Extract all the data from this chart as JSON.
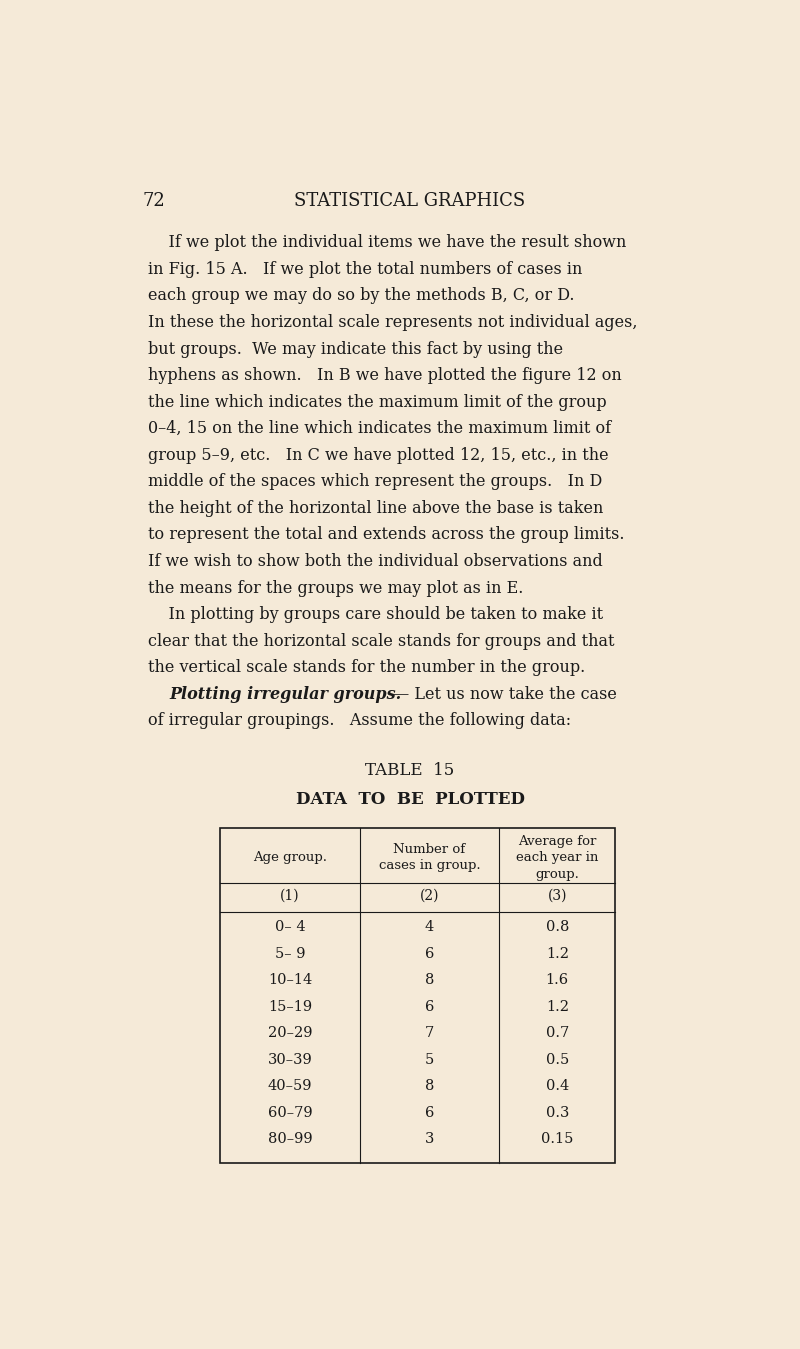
{
  "page_number": "72",
  "page_title": "STATISTICAL GRAPHICS",
  "background_color": "#f5ead8",
  "text_color": "#1a1a1a",
  "table_title": "TABLE  15",
  "table_subtitle": "DATA  TO  BE  PLOTTED",
  "col_headers": [
    "Age group.",
    "Number of\ncases in group.",
    "Average for\neach year in\ngroup."
  ],
  "col_numbers": [
    "(1)",
    "(2)",
    "(3)"
  ],
  "age_groups": [
    "0– 4",
    "5– 9",
    "10–14",
    "15–19",
    "20–29",
    "30–39",
    "40–59",
    "60–79",
    "80–99"
  ],
  "num_cases": [
    "4",
    "6",
    "8",
    "6",
    "7",
    "5",
    "8",
    "6",
    "3"
  ],
  "avg_year": [
    "0.8",
    "1.2",
    "1.6",
    "1.2",
    "0.7",
    "0.5",
    "0.4",
    "0.3",
    "0.15"
  ]
}
